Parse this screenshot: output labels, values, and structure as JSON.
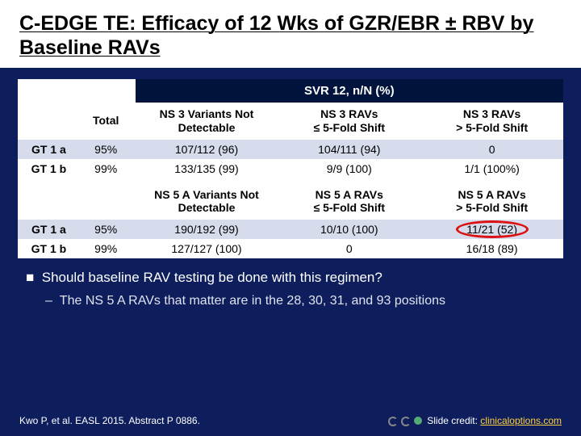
{
  "title": "C-EDGE TE: Efficacy of 12 Wks of GZR/EBR ± RBV by Baseline RAVs",
  "table": {
    "span_header": "SVR 12, n/N (%)",
    "cols_common": {
      "blank": "",
      "total": "Total"
    },
    "section1": {
      "cols": [
        "NS 3 Variants Not Detectable",
        "NS 3 RAVs\n≤ 5-Fold Shift",
        "NS 3 RAVs\n> 5-Fold Shift"
      ],
      "rows": [
        {
          "label": "GT 1 a",
          "total": "95%",
          "c1": "107/112 (96)",
          "c2": "104/111 (94)",
          "c3": "0"
        },
        {
          "label": "GT 1 b",
          "total": "99%",
          "c1": "133/135 (99)",
          "c2": "9/9 (100)",
          "c3": "1/1 (100%)"
        }
      ]
    },
    "section2": {
      "cols": [
        "NS 5 A Variants Not Detectable",
        "NS 5 A RAVs\n≤ 5-Fold Shift",
        "NS 5 A RAVs\n> 5-Fold Shift"
      ],
      "rows": [
        {
          "label": "GT 1 a",
          "total": "95%",
          "c1": "190/192 (99)",
          "c2": "10/10 (100)",
          "c3": "11/21 (52)",
          "circled": true
        },
        {
          "label": "GT 1 b",
          "total": "99%",
          "c1": "127/127 (100)",
          "c2": "0",
          "c3": "16/18 (89)"
        }
      ]
    }
  },
  "bullet": {
    "square": "■",
    "question": "Should baseline RAV testing be done with this regimen?",
    "dash": "–",
    "sub": "The NS 5 A RAVs that matter are in the 28, 30, 31, and 93 positions"
  },
  "footer": {
    "citation": "Kwo P, et al. EASL 2015. Abstract P 0886.",
    "credit_prefix": "Slide credit: ",
    "credit_link": "clinicaloptions.com"
  },
  "style": {
    "bg": "#0e1e5c",
    "header_bg": "#00133d",
    "alt_row": "#d6dceb",
    "circle": "#d11",
    "link": "#ffd040"
  }
}
